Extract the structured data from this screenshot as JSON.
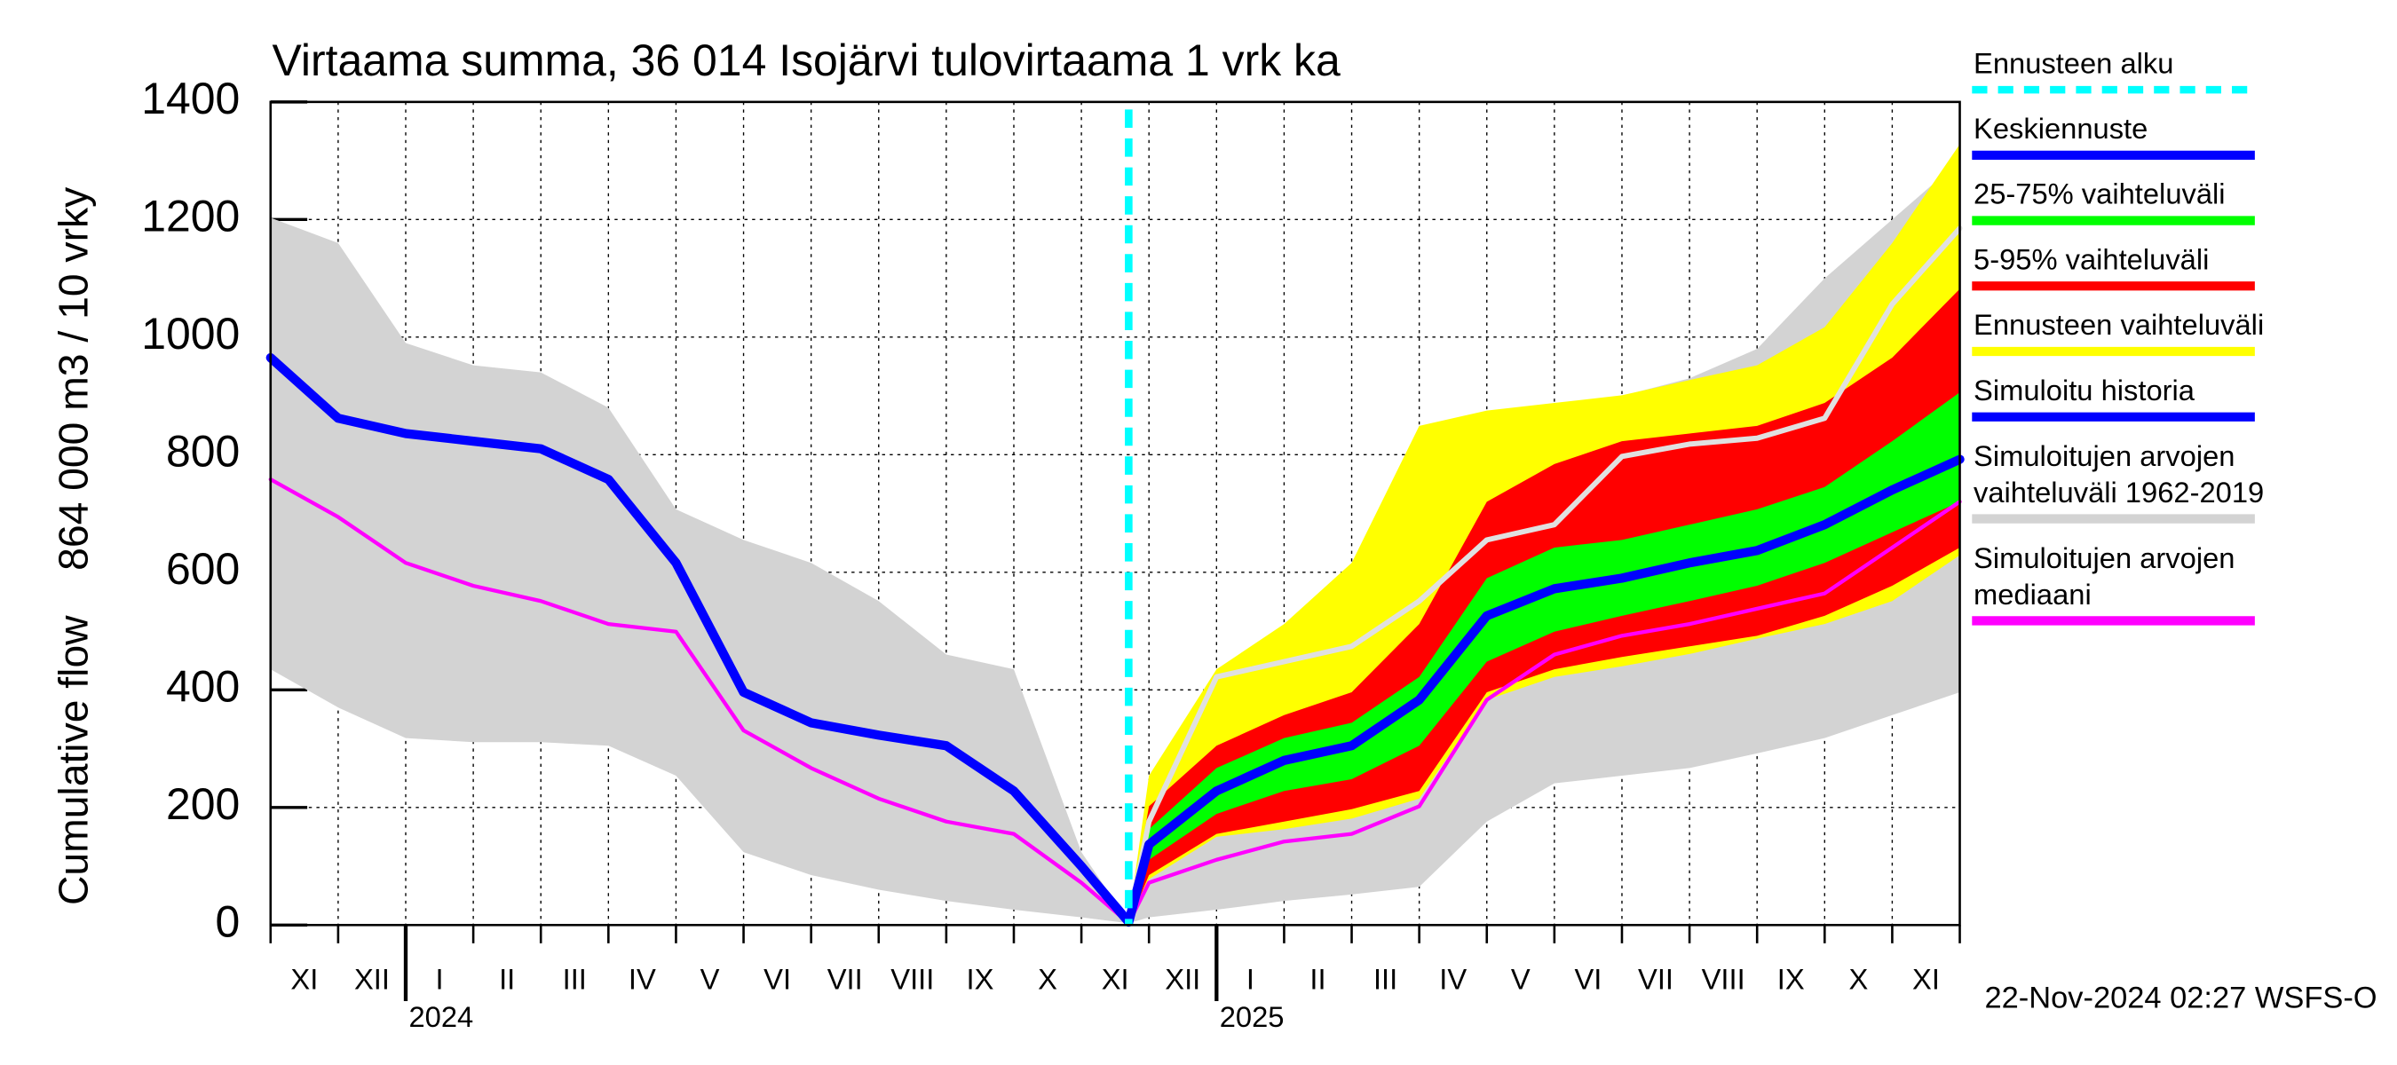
{
  "chart_data": {
    "type": "band-line",
    "title": "Virtaama summa, 36 014 Isojärvi tulovirtaama 1 vrk ka",
    "ylabel": [
      "Cumulative flow",
      "864 000 m3 / 10 vrky"
    ],
    "ylim": [
      0,
      1400
    ],
    "yticks": [
      0,
      200,
      400,
      600,
      800,
      1000,
      1200,
      1400
    ],
    "grid": true,
    "x": [
      "2023-11",
      "2023-12",
      "2024-01",
      "2024-02",
      "2024-03",
      "2024-04",
      "2024-05",
      "2024-06",
      "2024-07",
      "2024-08",
      "2024-09",
      "2024-10",
      "2024-11",
      "2024-11-22",
      "2024-12",
      "2025-01",
      "2025-02",
      "2025-03",
      "2025-04",
      "2025-05",
      "2025-06",
      "2025-07",
      "2025-08",
      "2025-09",
      "2025-10",
      "2025-11",
      "2025-12"
    ],
    "month_labels": [
      "XI",
      "XII",
      "I",
      "II",
      "III",
      "IV",
      "V",
      "VI",
      "VII",
      "VIII",
      "IX",
      "X",
      "XI",
      "XII",
      "I",
      "II",
      "III",
      "IV",
      "V",
      "VI",
      "VII",
      "VIII",
      "IX",
      "X",
      "XI"
    ],
    "year_ticks": [
      {
        "value": "2024-01",
        "label": "2024"
      },
      {
        "value": "2025-01",
        "label": "2025"
      }
    ],
    "forecast_start": {
      "name": "Ennusteen alku",
      "x": "2024-11-22",
      "color": "#00ffff"
    },
    "series": [
      {
        "name": "Keskiennuste",
        "kind": "line",
        "color": "#0000ff",
        "values": [
          null,
          null,
          null,
          null,
          null,
          null,
          null,
          null,
          null,
          null,
          null,
          null,
          null,
          5,
          137,
          228,
          280,
          305,
          383,
          526,
          572,
          590,
          616,
          637,
          681,
          740,
          792
        ]
      },
      {
        "name": "25-75% vaihteluväli",
        "kind": "band",
        "color": "#00ff00",
        "lower": [
          null,
          null,
          null,
          null,
          null,
          null,
          null,
          null,
          null,
          null,
          null,
          null,
          null,
          3,
          111,
          189,
          228,
          248,
          305,
          448,
          499,
          526,
          551,
          577,
          616,
          668,
          720
        ],
        "upper": [
          null,
          null,
          null,
          null,
          null,
          null,
          null,
          null,
          null,
          null,
          null,
          null,
          null,
          6,
          163,
          267,
          318,
          344,
          422,
          590,
          642,
          655,
          681,
          707,
          745,
          823,
          906
        ]
      },
      {
        "name": "5-95% vaihteluväli",
        "kind": "band",
        "color": "#ff0000",
        "lower": [
          null,
          null,
          null,
          null,
          null,
          null,
          null,
          null,
          null,
          null,
          null,
          null,
          null,
          2,
          85,
          155,
          176,
          197,
          228,
          396,
          435,
          456,
          474,
          492,
          526,
          577,
          642
        ],
        "upper": [
          null,
          null,
          null,
          null,
          null,
          null,
          null,
          null,
          null,
          null,
          null,
          null,
          null,
          7,
          202,
          305,
          357,
          396,
          512,
          720,
          784,
          823,
          836,
          849,
          888,
          965,
          1082
        ]
      },
      {
        "name": "Ennusteen vaihteluväli",
        "kind": "band",
        "color": "#ffff00",
        "lower": [
          null,
          null,
          null,
          null,
          null,
          null,
          null,
          null,
          null,
          null,
          null,
          null,
          null,
          1,
          78,
          150,
          163,
          181,
          215,
          383,
          422,
          440,
          461,
          487,
          512,
          551,
          629
        ],
        "upper": [
          null,
          null,
          null,
          null,
          null,
          null,
          null,
          null,
          null,
          null,
          null,
          null,
          null,
          8,
          254,
          435,
          512,
          616,
          849,
          875,
          888,
          901,
          927,
          952,
          1017,
          1160,
          1328
        ]
      },
      {
        "name": "Simuloitu historia",
        "kind": "line",
        "color": "#0000ff",
        "values": [
          965,
          862,
          836,
          823,
          810,
          758,
          616,
          396,
          344,
          323,
          305,
          228,
          100,
          5,
          null,
          null,
          null,
          null,
          null,
          null,
          null,
          null,
          null,
          null,
          null,
          null,
          null
        ]
      },
      {
        "name": "Simuloitujen arvojen\nvaihteluväli 1962-2019",
        "kind": "band",
        "color": "#d3d3d3",
        "lower": [
          435,
          370,
          318,
          311,
          311,
          305,
          254,
          124,
          85,
          60,
          41,
          26,
          13,
          3,
          13,
          26,
          41,
          52,
          65,
          176,
          241,
          254,
          267,
          292,
          318,
          357,
          396
        ],
        "upper": [
          1203,
          1160,
          990,
          952,
          940,
          880,
          707,
          655,
          616,
          551,
          460,
          435,
          124,
          5,
          170,
          300,
          450,
          550,
          700,
          850,
          880,
          900,
          930,
          980,
          1100,
          1200,
          1300
        ]
      },
      {
        "name": "Simuloitujen arvojen\nmediaani",
        "kind": "line",
        "color": "#ff00ff",
        "values": [
          758,
          694,
          616,
          577,
          551,
          512,
          499,
          331,
          267,
          215,
          176,
          155,
          72,
          3,
          72,
          111,
          142,
          155,
          202,
          383,
          460,
          492,
          512,
          538,
          564,
          642,
          720
        ]
      },
      {
        "kind": "line",
        "color": "#e0e0e0",
        "values": [
          null,
          null,
          null,
          null,
          null,
          null,
          null,
          null,
          null,
          null,
          null,
          null,
          null,
          5,
          176,
          422,
          448,
          474,
          551,
          655,
          681,
          797,
          818,
          828,
          862,
          1056,
          1185
        ]
      }
    ],
    "timestamp": "22-Nov-2024 02:27 WSFS-O"
  }
}
